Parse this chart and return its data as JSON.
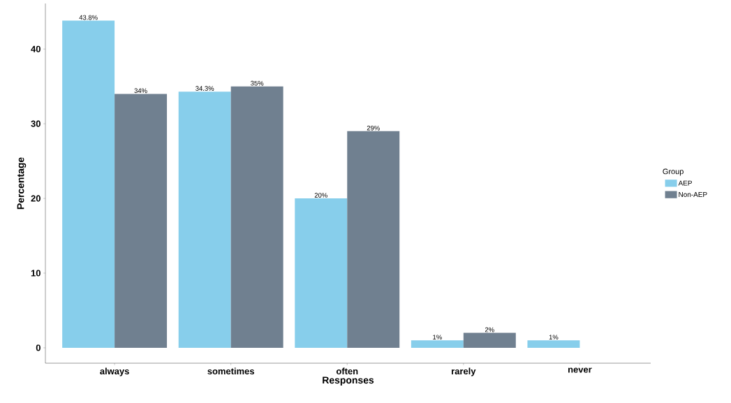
{
  "chart_data": {
    "type": "bar",
    "xlabel": "Responses",
    "ylabel": "Percentage",
    "legend_title": "Group",
    "categories": [
      "always",
      "sometimes",
      "often",
      "rarely",
      "never"
    ],
    "series": [
      {
        "name": "AEP",
        "color": "#87ceeb",
        "values": [
          43.8,
          34.3,
          20,
          1,
          1
        ],
        "value_labels": [
          "43.8%",
          "34.3%",
          "20%",
          "1%",
          "1%"
        ]
      },
      {
        "name": "Non-AEP",
        "color": "#708090",
        "values": [
          34,
          35,
          29,
          2,
          null
        ],
        "value_labels": [
          "34%",
          "35%",
          "29%",
          "2%",
          null
        ]
      }
    ],
    "ylim": [
      -2.06,
      46.1
    ],
    "yticks": [
      0,
      10,
      20,
      30,
      40
    ],
    "grid": false,
    "legend": "right"
  }
}
